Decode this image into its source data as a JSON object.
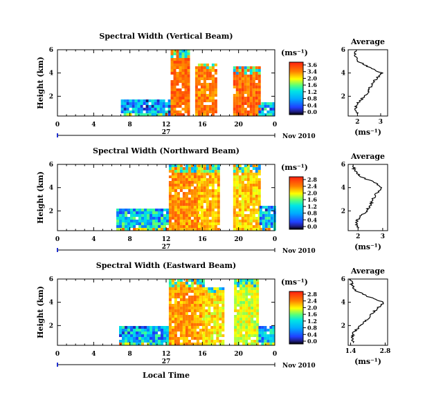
{
  "figure": {
    "xlabel": "Local Time",
    "date_label": "Nov 2010",
    "day_label": "27",
    "cbar_unit": "(ms⁻¹)",
    "avg_title": "Average",
    "avg_xlabel": "(ms⁻¹)",
    "ylabel": "Height (km)"
  },
  "chart_data": [
    {
      "type": "heatmap",
      "title": "Spectral Width (Vertical Beam)",
      "x_ticks": [
        "0",
        "4",
        "8",
        "12",
        "16",
        "20",
        "0"
      ],
      "x_range_hours": [
        0,
        24
      ],
      "y_range_km": [
        0.3,
        6
      ],
      "y_ticks": [
        "2",
        "4",
        "6"
      ],
      "colorbar": {
        "ticks": [
          "3.6",
          "3.4",
          "2.0",
          "1.6",
          "1.2",
          "0.8",
          "0.4",
          "0.0"
        ],
        "range": [
          0.0,
          3.6
        ]
      },
      "segments": [
        {
          "t0": 7,
          "t1": 12.5,
          "top_km": 1.8,
          "level": 0.3
        },
        {
          "t0": 12.5,
          "t1": 14.5,
          "top_km": 6,
          "level": 0.95
        },
        {
          "t0": 15.2,
          "t1": 17.5,
          "top_km": 5,
          "level": 0.92
        },
        {
          "t0": 19.4,
          "t1": 22.2,
          "top_km": 4.6,
          "level": 0.95
        },
        {
          "t0": 22.2,
          "t1": 24,
          "top_km": 1.5,
          "level": 0.35
        }
      ],
      "average": {
        "title": "Average",
        "xlim": [
          1.6,
          3.3
        ],
        "x_ticks": [
          "2",
          "3"
        ],
        "y_ticks": [
          "2",
          "4",
          "6"
        ],
        "profile": [
          [
            0.5,
            2.0
          ],
          [
            1.0,
            1.9
          ],
          [
            1.5,
            2.05
          ],
          [
            2.0,
            2.3
          ],
          [
            2.5,
            2.5
          ],
          [
            3.0,
            2.6
          ],
          [
            3.5,
            2.8
          ],
          [
            4.0,
            3.05
          ],
          [
            4.5,
            2.5
          ],
          [
            5.0,
            2.05
          ],
          [
            5.5,
            1.9
          ],
          [
            6.0,
            1.95
          ]
        ]
      }
    },
    {
      "type": "heatmap",
      "title": "Spectral Width (Northward Beam)",
      "x_ticks": [
        "0",
        "4",
        "8",
        "12",
        "16",
        "20",
        "0"
      ],
      "x_range_hours": [
        0,
        24
      ],
      "y_range_km": [
        0.3,
        6
      ],
      "y_ticks": [
        "2",
        "4",
        "6"
      ],
      "colorbar": {
        "ticks": [
          "2.8",
          "2.4",
          "2.0",
          "1.6",
          "1.2",
          "0.8",
          "0.4",
          "0.0"
        ],
        "range": [
          0.0,
          2.8
        ]
      },
      "segments": [
        {
          "t0": 6.5,
          "t1": 12.3,
          "top_km": 2.2,
          "level": 0.4
        },
        {
          "t0": 12.3,
          "t1": 15.5,
          "top_km": 6,
          "level": 0.9
        },
        {
          "t0": 15.5,
          "t1": 17.8,
          "top_km": 6,
          "level": 0.85
        },
        {
          "t0": 19.4,
          "t1": 22.3,
          "top_km": 6,
          "level": 0.82
        },
        {
          "t0": 22.3,
          "t1": 24,
          "top_km": 2.5,
          "level": 0.35
        }
      ],
      "average": {
        "title": "Average",
        "xlim": [
          1.6,
          3.2
        ],
        "x_ticks": [
          "2",
          "3"
        ],
        "y_ticks": [
          "2",
          "4",
          "6"
        ],
        "profile": [
          [
            0.5,
            2.0
          ],
          [
            1.0,
            1.9
          ],
          [
            1.5,
            2.1
          ],
          [
            2.0,
            2.35
          ],
          [
            2.5,
            2.5
          ],
          [
            3.0,
            2.6
          ],
          [
            3.5,
            2.75
          ],
          [
            4.0,
            3.0
          ],
          [
            4.5,
            2.6
          ],
          [
            5.0,
            2.05
          ],
          [
            5.5,
            1.85
          ],
          [
            6.0,
            1.8
          ]
        ]
      }
    },
    {
      "type": "heatmap",
      "title": "Spectral Width (Eastward Beam)",
      "x_ticks": [
        "0",
        "4",
        "8",
        "12",
        "16",
        "20",
        "0"
      ],
      "x_range_hours": [
        0,
        24
      ],
      "y_range_km": [
        0.3,
        6
      ],
      "y_ticks": [
        "2",
        "4",
        "6"
      ],
      "colorbar": {
        "ticks": [
          "2.8",
          "2.4",
          "2.0",
          "1.6",
          "1.2",
          "0.8",
          "0.4",
          "0.0"
        ],
        "range": [
          0.0,
          2.8
        ]
      },
      "segments": [
        {
          "t0": 6.8,
          "t1": 12.3,
          "top_km": 2.0,
          "level": 0.35
        },
        {
          "t0": 12.3,
          "t1": 16,
          "top_km": 6,
          "level": 0.88
        },
        {
          "t0": 16,
          "t1": 18.2,
          "top_km": 5.5,
          "level": 0.8
        },
        {
          "t0": 19.5,
          "t1": 22.2,
          "top_km": 6,
          "level": 0.75
        },
        {
          "t0": 22.2,
          "t1": 24,
          "top_km": 2.0,
          "level": 0.35
        }
      ],
      "average": {
        "title": "Average",
        "xlim": [
          1.3,
          2.9
        ],
        "x_ticks": [
          "1.4",
          "2.8"
        ],
        "y_ticks": [
          "2",
          "4",
          "6"
        ],
        "profile": [
          [
            0.5,
            1.5
          ],
          [
            1.0,
            1.45
          ],
          [
            1.5,
            1.55
          ],
          [
            2.0,
            1.8
          ],
          [
            2.5,
            2.05
          ],
          [
            3.0,
            2.25
          ],
          [
            3.5,
            2.5
          ],
          [
            4.0,
            2.75
          ],
          [
            4.5,
            2.1
          ],
          [
            5.0,
            1.6
          ],
          [
            5.5,
            1.45
          ],
          [
            6.0,
            1.4
          ]
        ]
      }
    }
  ]
}
